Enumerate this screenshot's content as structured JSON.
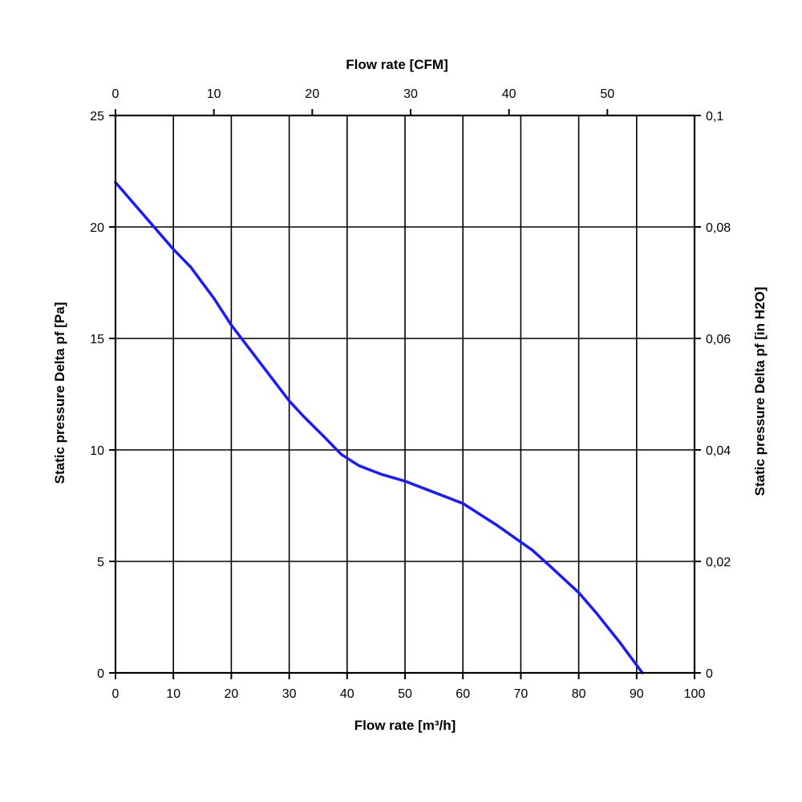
{
  "chart_data": {
    "type": "line",
    "xlabel": "Flow rate [m³/h]",
    "x2label": "Flow rate [CFM]",
    "ylabel": "Static pressure Delta pf [Pa]",
    "y2label": "Static pressure Delta pf [in H2O]",
    "xlim": [
      0,
      100
    ],
    "ylim": [
      0,
      25
    ],
    "x2lim": [
      0,
      58.86
    ],
    "y2lim": [
      0,
      0.1
    ],
    "grid": true,
    "x_ticks": [
      "0",
      "10",
      "20",
      "30",
      "40",
      "50",
      "60",
      "70",
      "80",
      "90",
      "100"
    ],
    "y_ticks": [
      "0",
      "5",
      "10",
      "15",
      "20",
      "25"
    ],
    "x2_ticks": [
      "0",
      "10",
      "20",
      "30",
      "40",
      "50"
    ],
    "y2_ticks": [
      "0",
      "0,02",
      "0,04",
      "0,06",
      "0,08",
      "0,1"
    ],
    "line_color": "#1a1aff",
    "series": [
      {
        "x": [
          0,
          5,
          10,
          13,
          17,
          20,
          25,
          30,
          32.5,
          36,
          39,
          42,
          46,
          50,
          55,
          60,
          66,
          72,
          75,
          80,
          83,
          87,
          91
        ],
        "y": [
          22,
          20.5,
          19,
          18.2,
          16.8,
          15.6,
          13.9,
          12.2,
          11.5,
          10.6,
          9.8,
          9.3,
          8.9,
          8.6,
          8.1,
          7.6,
          6.6,
          5.5,
          4.8,
          3.6,
          2.7,
          1.4,
          0
        ]
      }
    ]
  }
}
